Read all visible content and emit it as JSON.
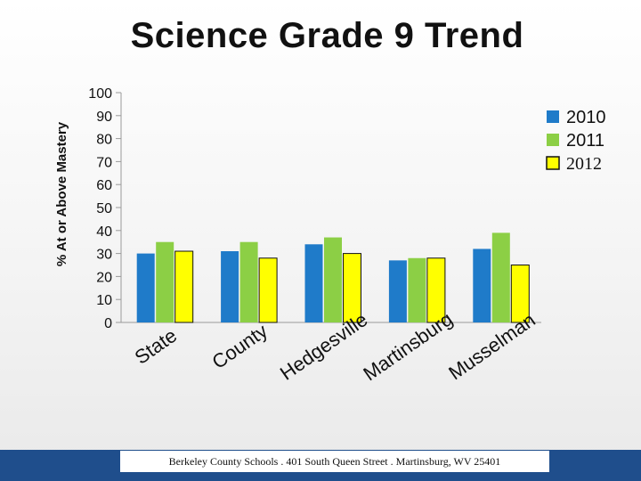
{
  "chart_data": {
    "type": "bar",
    "title": "Science Grade 9 Trend",
    "ylabel": "% At or Above Mastery",
    "xlabel": "",
    "categories": [
      "State",
      "County",
      "Hedgesville",
      "Martinsburg",
      "Musselman"
    ],
    "ylim": [
      0,
      100
    ],
    "yticks": [
      0,
      10,
      20,
      30,
      40,
      50,
      60,
      70,
      80,
      90,
      100
    ],
    "series": [
      {
        "name": "2010",
        "color": "#1f7bc9",
        "values": [
          30,
          31,
          34,
          27,
          32
        ]
      },
      {
        "name": "2011",
        "color": "#8ccf45",
        "values": [
          35,
          35,
          37,
          28,
          39
        ]
      },
      {
        "name": "2012",
        "color": "#ffff00",
        "values": [
          31,
          28,
          30,
          28,
          25
        ]
      }
    ],
    "legend": "right",
    "grid": false
  },
  "footer": {
    "text": "Berkeley County Schools . 401 South Queen Street . Martinsburg, WV  25401"
  }
}
